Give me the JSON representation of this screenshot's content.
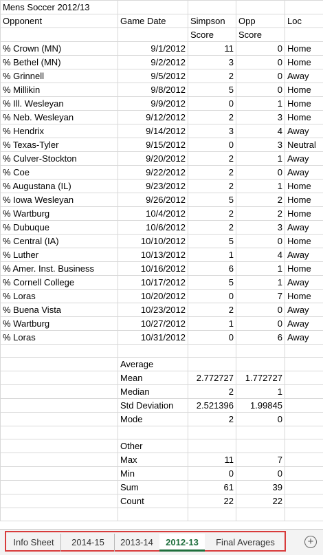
{
  "sheet": {
    "title": "Mens Soccer 2012/13",
    "headers": {
      "opponent": "Opponent",
      "date": "Game Date",
      "simpson1": "Simpson",
      "opp1": "Opp",
      "loc": "Loc",
      "simpson2": "Score",
      "opp2": "Score"
    },
    "games": [
      {
        "opponent": "% Crown (MN)",
        "date": "9/1/2012",
        "simpson": "11",
        "opp": "0",
        "loc": "Home"
      },
      {
        "opponent": "% Bethel (MN)",
        "date": "9/2/2012",
        "simpson": "3",
        "opp": "0",
        "loc": "Home"
      },
      {
        "opponent": "% Grinnell",
        "date": "9/5/2012",
        "simpson": "2",
        "opp": "0",
        "loc": "Away"
      },
      {
        "opponent": "% Millikin",
        "date": "9/8/2012",
        "simpson": "5",
        "opp": "0",
        "loc": "Home"
      },
      {
        "opponent": "% Ill. Wesleyan",
        "date": "9/9/2012",
        "simpson": "0",
        "opp": "1",
        "loc": "Home"
      },
      {
        "opponent": "% Neb. Wesleyan",
        "date": "9/12/2012",
        "simpson": "2",
        "opp": "3",
        "loc": "Home"
      },
      {
        "opponent": "% Hendrix",
        "date": "9/14/2012",
        "simpson": "3",
        "opp": "4",
        "loc": "Away"
      },
      {
        "opponent": "% Texas-Tyler",
        "date": "9/15/2012",
        "simpson": "0",
        "opp": "3",
        "loc": "Neutral"
      },
      {
        "opponent": "% Culver-Stockton",
        "date": "9/20/2012",
        "simpson": "2",
        "opp": "1",
        "loc": "Away"
      },
      {
        "opponent": "% Coe",
        "date": "9/22/2012",
        "simpson": "2",
        "opp": "0",
        "loc": "Away"
      },
      {
        "opponent": "% Augustana (IL)",
        "date": "9/23/2012",
        "simpson": "2",
        "opp": "1",
        "loc": "Home"
      },
      {
        "opponent": "% Iowa Wesleyan",
        "date": "9/26/2012",
        "simpson": "5",
        "opp": "2",
        "loc": "Home"
      },
      {
        "opponent": "% Wartburg",
        "date": "10/4/2012",
        "simpson": "2",
        "opp": "2",
        "loc": "Home"
      },
      {
        "opponent": "% Dubuque",
        "date": "10/6/2012",
        "simpson": "2",
        "opp": "3",
        "loc": "Away"
      },
      {
        "opponent": "% Central (IA)",
        "date": "10/10/2012",
        "simpson": "5",
        "opp": "0",
        "loc": "Home"
      },
      {
        "opponent": "% Luther",
        "date": "10/13/2012",
        "simpson": "1",
        "opp": "4",
        "loc": "Away"
      },
      {
        "opponent": "% Amer. Inst. Business",
        "date": "10/16/2012",
        "simpson": "6",
        "opp": "1",
        "loc": "Home"
      },
      {
        "opponent": "% Cornell College",
        "date": "10/17/2012",
        "simpson": "5",
        "opp": "1",
        "loc": "Away"
      },
      {
        "opponent": "% Loras",
        "date": "10/20/2012",
        "simpson": "0",
        "opp": "7",
        "loc": "Home"
      },
      {
        "opponent": "% Buena Vista",
        "date": "10/23/2012",
        "simpson": "2",
        "opp": "0",
        "loc": "Away"
      },
      {
        "opponent": "% Wartburg",
        "date": "10/27/2012",
        "simpson": "1",
        "opp": "0",
        "loc": "Away"
      },
      {
        "opponent": "% Loras",
        "date": "10/31/2012",
        "simpson": "0",
        "opp": "6",
        "loc": "Away"
      }
    ],
    "average_label": "Average",
    "average": [
      {
        "label": "Mean",
        "simpson": "2.772727",
        "opp": "1.772727"
      },
      {
        "label": "Median",
        "simpson": "2",
        "opp": "1"
      },
      {
        "label": "Std Deviation",
        "simpson": "2.521396",
        "opp": "1.99845"
      },
      {
        "label": "Mode",
        "simpson": "2",
        "opp": "0"
      }
    ],
    "other_label": "Other",
    "other": [
      {
        "label": "Max",
        "simpson": "11",
        "opp": "7"
      },
      {
        "label": "Min",
        "simpson": "0",
        "opp": "0"
      },
      {
        "label": "Sum",
        "simpson": "61",
        "opp": "39"
      },
      {
        "label": "Count",
        "simpson": "22",
        "opp": "22"
      }
    ]
  },
  "tabs": [
    {
      "label": "Info Sheet",
      "active": false
    },
    {
      "label": "2014-15",
      "active": false
    },
    {
      "label": "2013-14",
      "active": false
    },
    {
      "label": "2012-13",
      "active": true
    },
    {
      "label": "Final Averages",
      "active": false
    }
  ],
  "colors": {
    "active_tab": "#1e6e3c",
    "highlight_border": "#d83b3b"
  },
  "add_sheet_icon": "plus-circle-icon"
}
